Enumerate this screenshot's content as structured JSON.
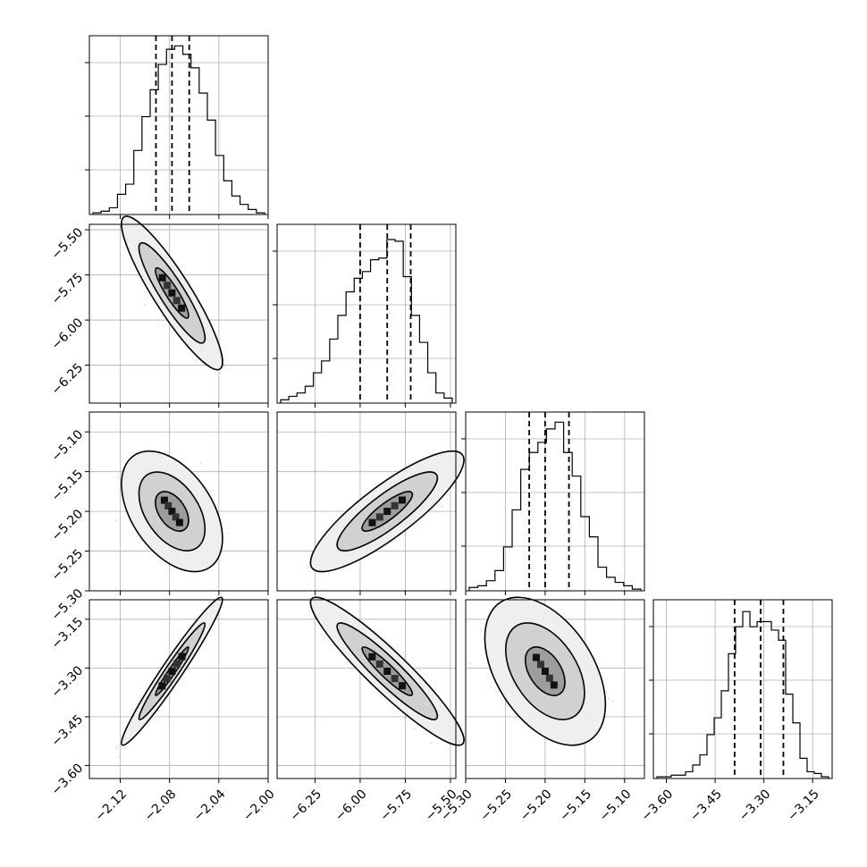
{
  "chart_data": {
    "type": "corner",
    "grid": true,
    "parameters": [
      {
        "range": [
          -2.145,
          -2.0
        ],
        "ticks": [
          -2.12,
          -2.08,
          -2.04,
          -2.0
        ],
        "tick_labels": [
          "−2.12",
          "−2.08",
          "−2.04",
          "−2.00"
        ],
        "quantiles": [
          -2.091,
          -2.078,
          -2.064
        ],
        "hist_values": [
          0.01,
          0.02,
          0.04,
          0.12,
          0.18,
          0.38,
          0.58,
          0.74,
          0.89,
          0.98,
          1.0,
          0.95,
          0.87,
          0.72,
          0.56,
          0.35,
          0.2,
          0.11,
          0.06,
          0.03,
          0.01
        ]
      },
      {
        "range": [
          -6.46,
          -5.47
        ],
        "ticks": [
          -6.25,
          -6.0,
          -5.75,
          -5.5
        ],
        "tick_labels": [
          "−6.25",
          "−6.00",
          "−5.75",
          "−5.50"
        ],
        "quantiles": [
          -6.0,
          -5.85,
          -5.72
        ],
        "hist_values": [
          0.02,
          0.04,
          0.06,
          0.1,
          0.18,
          0.25,
          0.38,
          0.52,
          0.66,
          0.74,
          0.78,
          0.85,
          0.86,
          0.97,
          0.96,
          0.75,
          0.52,
          0.36,
          0.18,
          0.06,
          0.03
        ]
      },
      {
        "range": [
          -5.3,
          -5.075
        ],
        "ticks": [
          -5.3,
          -5.25,
          -5.2,
          -5.15,
          -5.1
        ],
        "tick_labels": [
          "−5.30",
          "−5.25",
          "−5.20",
          "−5.15",
          "−5.10"
        ],
        "quantiles": [
          -5.22,
          -5.2,
          -5.17
        ],
        "hist_values": [
          0.02,
          0.03,
          0.06,
          0.12,
          0.26,
          0.48,
          0.72,
          0.82,
          0.88,
          0.96,
          1.0,
          0.82,
          0.68,
          0.44,
          0.32,
          0.14,
          0.08,
          0.05,
          0.03,
          0.01
        ]
      },
      {
        "range": [
          -3.64,
          -3.09
        ],
        "ticks": [
          -3.6,
          -3.45,
          -3.3,
          -3.15
        ],
        "tick_labels": [
          "−3.60",
          "−3.45",
          "−3.30",
          "−3.15"
        ],
        "quantiles": [
          -3.39,
          -3.31,
          -3.24
        ],
        "hist_values": [
          0.01,
          0.01,
          0.02,
          0.02,
          0.04,
          0.08,
          0.14,
          0.26,
          0.36,
          0.52,
          0.74,
          0.9,
          0.99,
          0.9,
          0.93,
          0.93,
          0.88,
          0.82,
          0.5,
          0.33,
          0.12,
          0.04,
          0.03,
          0.01
        ]
      }
    ],
    "correlations": {
      "1-0": -0.9,
      "2-0": -0.45,
      "2-1": 0.85,
      "3-0": 0.97,
      "3-1": -0.93,
      "3-2": -0.45
    },
    "contour_levels": [
      0.39,
      0.86,
      0.99
    ]
  }
}
